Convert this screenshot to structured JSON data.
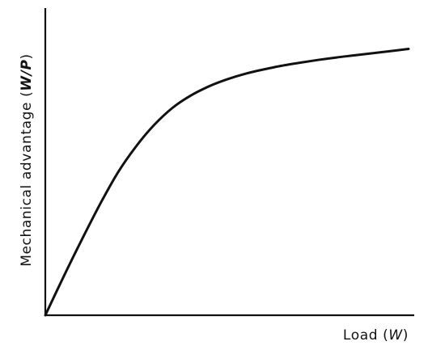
{
  "chart_data": {
    "type": "line",
    "title": "",
    "xlabel": {
      "prefix": "Load (",
      "symbol": "W",
      "suffix": ")"
    },
    "ylabel": {
      "prefix": "Mechanical advantage (",
      "symbol": "W/P",
      "suffix": ")"
    },
    "grid": false,
    "legend": "none",
    "xlim": [
      0,
      1
    ],
    "ylim": [
      0,
      1
    ],
    "series": [
      {
        "x": [
          0,
          0.05,
          0.1,
          0.15,
          0.2,
          0.25,
          0.3,
          0.35,
          0.4,
          0.45,
          0.5,
          0.55,
          0.6,
          0.65,
          0.7,
          0.75,
          0.8,
          0.85,
          0.9,
          0.95,
          1.0
        ],
        "y": [
          0,
          0.125,
          0.245,
          0.36,
          0.465,
          0.55,
          0.62,
          0.675,
          0.715,
          0.745,
          0.768,
          0.786,
          0.8,
          0.812,
          0.822,
          0.831,
          0.839,
          0.846,
          0.853,
          0.86,
          0.867
        ]
      }
    ]
  }
}
